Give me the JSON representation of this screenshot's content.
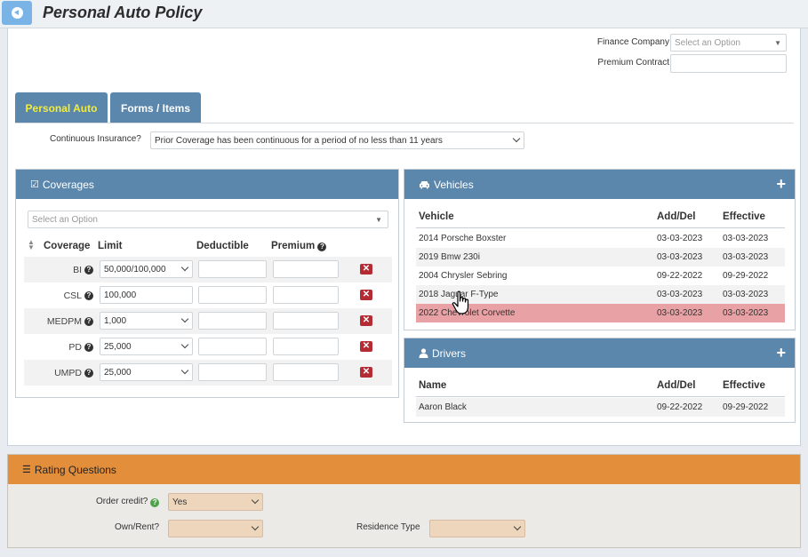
{
  "page": {
    "title": "Personal Auto Policy"
  },
  "finance": {
    "company_label": "Finance Company",
    "company_placeholder": "Select an Option",
    "premium_contract_label": "Premium Contract"
  },
  "tabs": [
    {
      "label": "Personal Auto",
      "active": true
    },
    {
      "label": "Forms / Items",
      "active": false
    }
  ],
  "continuous_insurance": {
    "label": "Continuous Insurance?",
    "value": "Prior Coverage has been continuous for a period of no less than 11 years"
  },
  "coverages": {
    "title": "Coverages",
    "select_placeholder": "Select an Option",
    "columns": {
      "coverage": "Coverage",
      "limit": "Limit",
      "deductible": "Deductible",
      "premium": "Premium"
    },
    "rows": [
      {
        "name": "BI",
        "limit": "50,000/100,000",
        "has_dropdown": true
      },
      {
        "name": "CSL",
        "limit": "100,000",
        "has_dropdown": false
      },
      {
        "name": "MEDPM",
        "limit": "1,000",
        "has_dropdown": true
      },
      {
        "name": "PD",
        "limit": "25,000",
        "has_dropdown": true
      },
      {
        "name": "UMPD",
        "limit": "25,000",
        "has_dropdown": true
      }
    ]
  },
  "vehicles": {
    "title": "Vehicles",
    "columns": {
      "name": "Vehicle",
      "adddel": "Add/Del",
      "effective": "Effective"
    },
    "rows": [
      {
        "name": "2014 Porsche Boxster",
        "adddel": "03-03-2023",
        "effective": "03-03-2023"
      },
      {
        "name": "2019 Bmw 230i",
        "adddel": "03-03-2023",
        "effective": "03-03-2023"
      },
      {
        "name": "2004 Chrysler Sebring",
        "adddel": "09-22-2022",
        "effective": "09-29-2022"
      },
      {
        "name": "2018 Jaguar F-Type",
        "adddel": "03-03-2023",
        "effective": "03-03-2023"
      },
      {
        "name": "2022 Chevrolet Corvette",
        "adddel": "03-03-2023",
        "effective": "03-03-2023",
        "selected": true
      }
    ]
  },
  "drivers": {
    "title": "Drivers",
    "columns": {
      "name": "Name",
      "adddel": "Add/Del",
      "effective": "Effective"
    },
    "rows": [
      {
        "name": "Aaron Black",
        "adddel": "09-22-2022",
        "effective": "09-29-2022"
      }
    ]
  },
  "rating": {
    "title": "Rating Questions",
    "order_credit_label": "Order credit?",
    "order_credit_value": "Yes",
    "own_rent_label": "Own/Rent?",
    "own_rent_value": "",
    "residence_type_label": "Residence Type",
    "residence_type_value": ""
  },
  "colors": {
    "header_blue": "#5b87ad",
    "active_tab_text": "#f2ec3c",
    "rating_orange": "#e38e3b",
    "selected_row": "#e8a1a4",
    "delete_red": "#b52b34"
  },
  "icons": [
    "back-circle-icon",
    "checkbox-icon",
    "car-icon",
    "user-icon",
    "list-icon",
    "plus-icon",
    "question-icon",
    "delete-icon",
    "hand-cursor-icon"
  ]
}
